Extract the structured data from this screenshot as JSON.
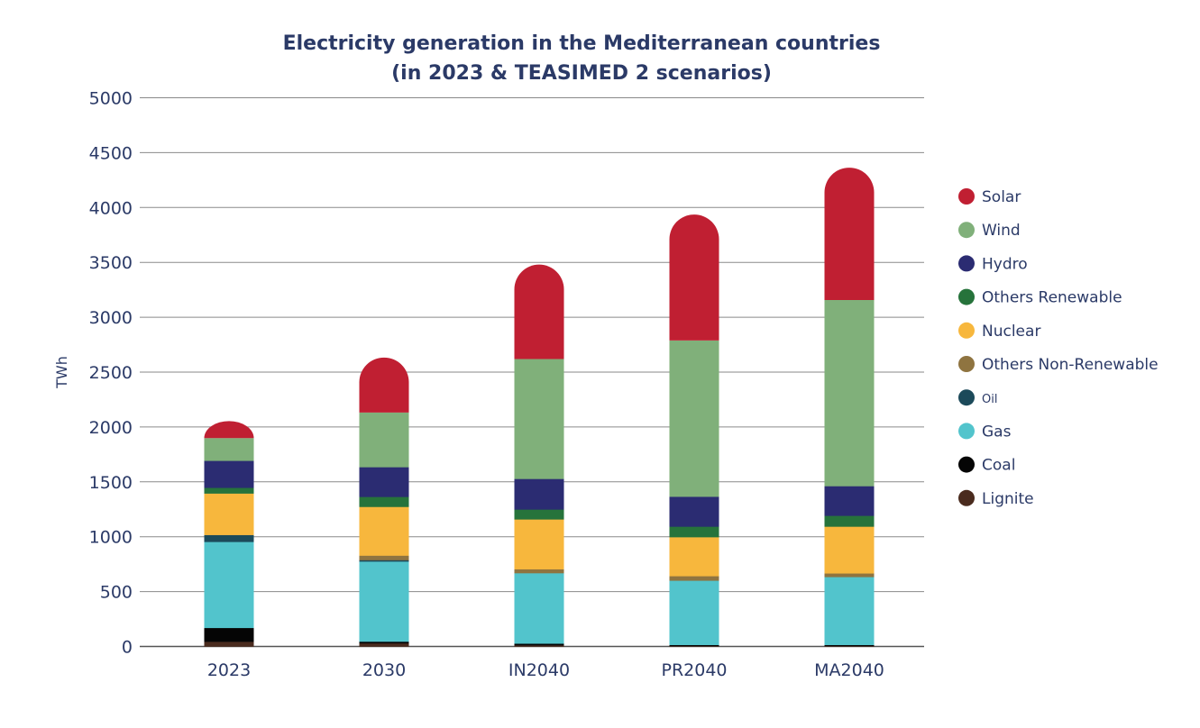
{
  "chart_data": {
    "type": "bar",
    "stacked": true,
    "title": [
      "Electricity generation in the Mediterranean countries",
      "(in 2023 & TEASIMED 2 scenarios)"
    ],
    "xlabel": "",
    "ylabel": "TWh",
    "ylim": [
      0,
      5000
    ],
    "yticks": [
      0,
      500,
      1000,
      1500,
      2000,
      2500,
      3000,
      3500,
      4000,
      4500,
      5000
    ],
    "grid": true,
    "legend_position": "right",
    "categories": [
      "2023",
      "2030",
      "IN2040",
      "PR2040",
      "MA2040"
    ],
    "series": [
      {
        "name": "Solar",
        "color": "#c01f32",
        "values": [
          155,
          501,
          861,
          1148,
          1206
        ]
      },
      {
        "name": "Wind",
        "color": "#80b07a",
        "values": [
          206,
          497,
          1091,
          1422,
          1695
        ]
      },
      {
        "name": "Hydro",
        "color": "#2b2c72",
        "values": [
          246,
          271,
          279,
          273,
          270
        ]
      },
      {
        "name": "Others Renewable",
        "color": "#26733b",
        "values": [
          52,
          91,
          90,
          96,
          99
        ]
      },
      {
        "name": "Nuclear",
        "color": "#f7b73d",
        "values": [
          378,
          444,
          454,
          355,
          426
        ]
      },
      {
        "name": "Others Non-Renewable",
        "color": "#8f7440",
        "values": [
          0,
          41,
          36,
          41,
          33
        ]
      },
      {
        "name": "Oil",
        "color": "#1c4a5a",
        "values": [
          63,
          13,
          0,
          0,
          0
        ]
      },
      {
        "name": "Gas",
        "color": "#52c4cc",
        "values": [
          784,
          730,
          642,
          586,
          619
        ]
      },
      {
        "name": "Coal",
        "color": "#050505",
        "values": [
          126,
          15,
          15,
          10,
          10
        ]
      },
      {
        "name": "Lignite",
        "color": "#4a2b1e",
        "values": [
          44,
          30,
          12,
          5,
          5
        ]
      }
    ]
  }
}
